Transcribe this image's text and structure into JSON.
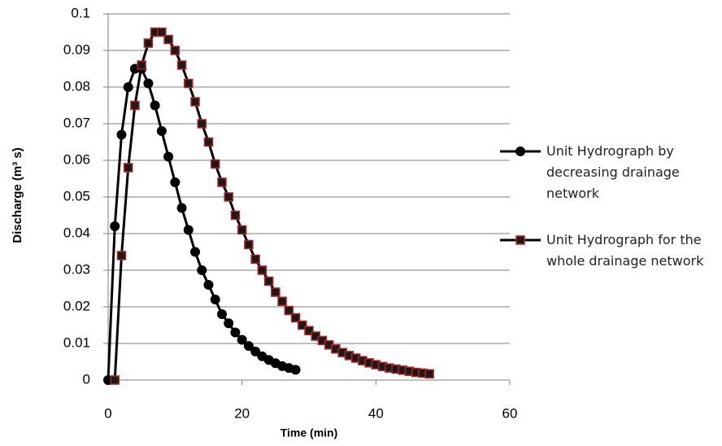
{
  "chart_data": {
    "type": "line",
    "xlabel": "Time (min)",
    "ylabel": "Discharge (m³ s)",
    "xlim": [
      0,
      60
    ],
    "xticks": [
      0,
      20,
      40,
      60
    ],
    "ylim": [
      0,
      0.1
    ],
    "yticks": [
      0,
      0.01,
      0.02,
      0.03,
      0.04,
      0.05,
      0.06,
      0.07,
      0.08,
      0.09,
      0.1
    ],
    "grid": true,
    "legend": "right",
    "series": [
      {
        "name": "Unit Hydrograph by decreasing drainage network",
        "color": "#000000",
        "marker": "circle",
        "x": [
          0,
          1,
          2,
          3,
          4,
          5,
          6,
          7,
          8,
          9,
          10,
          11,
          12,
          13,
          14,
          15,
          16,
          17,
          18,
          19,
          20,
          21,
          22,
          23,
          24,
          25,
          26,
          27,
          28
        ],
        "values": [
          0,
          0.042,
          0.067,
          0.08,
          0.085,
          0.085,
          0.081,
          0.075,
          0.068,
          0.061,
          0.054,
          0.047,
          0.041,
          0.035,
          0.03,
          0.026,
          0.022,
          0.018,
          0.0155,
          0.013,
          0.011,
          0.0093,
          0.0078,
          0.0065,
          0.0055,
          0.0046,
          0.0038,
          0.0033,
          0.0028
        ]
      },
      {
        "name": "Unit Hydrograph for the whole drainage network",
        "color": "#b22222",
        "marker": "square",
        "x": [
          1,
          2,
          3,
          4,
          5,
          6,
          7,
          8,
          9,
          10,
          11,
          12,
          13,
          14,
          15,
          16,
          17,
          18,
          19,
          20,
          21,
          22,
          23,
          24,
          25,
          26,
          27,
          28,
          29,
          30,
          31,
          32,
          33,
          34,
          35,
          36,
          37,
          38,
          39,
          40,
          41,
          42,
          43,
          44,
          45,
          46,
          47,
          48
        ],
        "values": [
          0,
          0.034,
          0.058,
          0.075,
          0.086,
          0.092,
          0.095,
          0.095,
          0.093,
          0.09,
          0.086,
          0.081,
          0.076,
          0.07,
          0.065,
          0.059,
          0.054,
          0.05,
          0.045,
          0.041,
          0.037,
          0.033,
          0.03,
          0.027,
          0.024,
          0.0215,
          0.019,
          0.017,
          0.015,
          0.0135,
          0.012,
          0.0108,
          0.0096,
          0.0085,
          0.0075,
          0.0067,
          0.006,
          0.0053,
          0.0047,
          0.0042,
          0.0037,
          0.0033,
          0.003,
          0.0027,
          0.0024,
          0.0021,
          0.0019,
          0.0017
        ]
      }
    ]
  }
}
